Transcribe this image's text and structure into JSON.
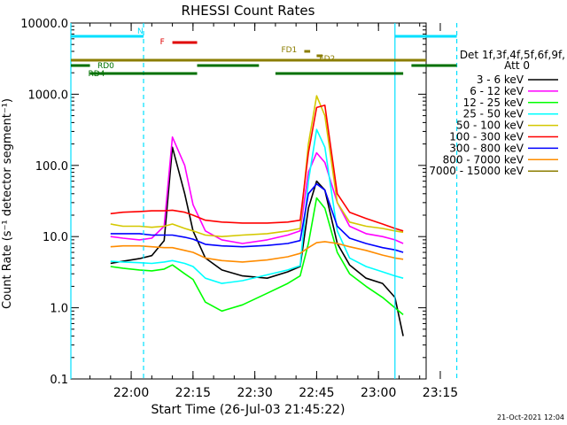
{
  "chart_data": {
    "type": "line",
    "title": "RHESSI Count Rates",
    "xlabel": "Start Time (26-Jul-03 21:45:22)",
    "ylabel": "Count Rate (s⁻¹ detector segment⁻¹)",
    "y_scale": "log",
    "ylim": [
      0.1,
      10000
    ],
    "y_ticks": [
      "0.1",
      "1.0",
      "10.0",
      "100.0",
      "1000.0",
      "10000.0"
    ],
    "xlim_minutes_after_start": [
      0,
      86.2
    ],
    "x_ticks": [
      "22:00",
      "22:15",
      "22:30",
      "22:45",
      "23:00",
      "23:15"
    ],
    "grid": false,
    "legend_position": "right",
    "legend_header": [
      "Det 1f,3f,4f,5f,6f,9f,",
      "Att 0"
    ],
    "series": [
      {
        "name": "3 - 6 keV",
        "color": "#000000",
        "times": [
          "21:55",
          "21:58",
          "22:02",
          "22:05",
          "22:08",
          "22:10",
          "22:13",
          "22:15",
          "22:18",
          "22:22",
          "22:27",
          "22:33",
          "22:38",
          "22:41",
          "22:43",
          "22:45",
          "22:47",
          "22:50",
          "22:53",
          "22:57",
          "23:01",
          "23:04",
          "23:06"
        ],
        "values": [
          4.2,
          4.5,
          4.9,
          5.4,
          8.8,
          180,
          40,
          12,
          5,
          3.4,
          2.8,
          2.6,
          3.2,
          3.8,
          25,
          60,
          45,
          8,
          4,
          2.6,
          2.2,
          1.4,
          0.4
        ]
      },
      {
        "name": "6 - 12 keV",
        "color": "#ff00ff",
        "times": [
          "21:55",
          "21:58",
          "22:02",
          "22:05",
          "22:08",
          "22:10",
          "22:13",
          "22:15",
          "22:18",
          "22:22",
          "22:27",
          "22:33",
          "22:38",
          "22:41",
          "22:43",
          "22:45",
          "22:47",
          "22:50",
          "22:53",
          "22:57",
          "23:01",
          "23:04",
          "23:06"
        ],
        "values": [
          10,
          9.5,
          9,
          9.5,
          14,
          250,
          100,
          28,
          12,
          9,
          8,
          9,
          10.5,
          12,
          80,
          150,
          110,
          30,
          14,
          11,
          10,
          9,
          8
        ]
      },
      {
        "name": "12 - 25 keV",
        "color": "#00ff00",
        "times": [
          "21:55",
          "21:58",
          "22:02",
          "22:05",
          "22:08",
          "22:10",
          "22:13",
          "22:15",
          "22:18",
          "22:22",
          "22:27",
          "22:33",
          "22:38",
          "22:41",
          "22:43",
          "22:45",
          "22:47",
          "22:50",
          "22:53",
          "22:57",
          "23:01",
          "23:04",
          "23:06"
        ],
        "values": [
          3.8,
          3.6,
          3.4,
          3.3,
          3.5,
          4,
          3,
          2.5,
          1.2,
          0.9,
          1.1,
          1.6,
          2.2,
          2.8,
          8,
          35,
          25,
          6,
          3,
          2,
          1.4,
          1,
          0.8
        ]
      },
      {
        "name": "25 - 50 keV",
        "color": "#00ffff",
        "times": [
          "21:55",
          "21:58",
          "22:02",
          "22:05",
          "22:08",
          "22:10",
          "22:13",
          "22:15",
          "22:18",
          "22:22",
          "22:27",
          "22:33",
          "22:38",
          "22:41",
          "22:43",
          "22:45",
          "22:47",
          "22:50",
          "22:53",
          "22:57",
          "23:01",
          "23:04",
          "23:06"
        ],
        "values": [
          4.5,
          4.4,
          4.3,
          4.2,
          4.4,
          4.6,
          4.2,
          3.8,
          2.6,
          2.2,
          2.4,
          2.9,
          3.4,
          3.9,
          60,
          320,
          180,
          12,
          5,
          3.8,
          3.2,
          2.8,
          2.6
        ]
      },
      {
        "name": "50 - 100 keV",
        "color": "#d4c800",
        "times": [
          "21:55",
          "21:58",
          "22:02",
          "22:05",
          "22:08",
          "22:10",
          "22:13",
          "22:15",
          "22:18",
          "22:22",
          "22:27",
          "22:33",
          "22:38",
          "22:41",
          "22:43",
          "22:45",
          "22:47",
          "22:50",
          "22:53",
          "22:57",
          "23:01",
          "23:04",
          "23:06"
        ],
        "values": [
          15,
          14,
          14,
          13.5,
          14,
          15,
          13,
          12,
          10.5,
          10,
          10.5,
          11,
          12,
          13,
          200,
          950,
          500,
          30,
          16,
          14,
          13,
          12,
          11.5
        ]
      },
      {
        "name": "100 - 300 keV",
        "color": "#ff0000",
        "times": [
          "21:55",
          "21:58",
          "22:02",
          "22:05",
          "22:08",
          "22:10",
          "22:13",
          "22:15",
          "22:18",
          "22:22",
          "22:27",
          "22:33",
          "22:38",
          "22:41",
          "22:43",
          "22:45",
          "22:47",
          "22:50",
          "22:53",
          "22:57",
          "23:01",
          "23:04",
          "23:06"
        ],
        "values": [
          21,
          22,
          22.5,
          23,
          23,
          23.5,
          22,
          20,
          17,
          16,
          15.5,
          15.5,
          16,
          17,
          150,
          650,
          700,
          40,
          22,
          18,
          15,
          13,
          12
        ]
      },
      {
        "name": "300 - 800 keV",
        "color": "#0000ff",
        "times": [
          "21:55",
          "21:58",
          "22:02",
          "22:05",
          "22:08",
          "22:10",
          "22:13",
          "22:15",
          "22:18",
          "22:22",
          "22:27",
          "22:33",
          "22:38",
          "22:41",
          "22:43",
          "22:45",
          "22:47",
          "22:50",
          "22:53",
          "22:57",
          "23:01",
          "23:04",
          "23:06"
        ],
        "values": [
          11,
          11,
          11,
          10.5,
          10.5,
          10.5,
          9.8,
          9.2,
          7.8,
          7.4,
          7.2,
          7.5,
          8,
          8.8,
          40,
          55,
          45,
          14,
          9.5,
          8,
          7,
          6.5,
          6
        ]
      },
      {
        "name": "800 - 7000 keV",
        "color": "#ff8c00",
        "times": [
          "21:55",
          "21:58",
          "22:02",
          "22:05",
          "22:08",
          "22:10",
          "22:13",
          "22:15",
          "22:18",
          "22:22",
          "22:27",
          "22:33",
          "22:38",
          "22:41",
          "22:43",
          "22:45",
          "22:47",
          "22:50",
          "22:53",
          "22:57",
          "23:01",
          "23:04",
          "23:06"
        ],
        "values": [
          7.2,
          7.4,
          7.4,
          7.2,
          7,
          7,
          6.4,
          6,
          5,
          4.6,
          4.4,
          4.7,
          5.2,
          5.8,
          7,
          8.2,
          8.5,
          8,
          7.2,
          6.4,
          5.5,
          5,
          4.8
        ]
      },
      {
        "name": "7000 - 15000 keV",
        "color": "#8b7d00",
        "times": [
          "21:55",
          "21:58",
          "22:02",
          "22:05",
          "22:08",
          "22:10",
          "22:13",
          "22:15",
          "22:18",
          "22:22",
          "22:27",
          "22:33",
          "22:38",
          "22:41",
          "22:43",
          "22:45",
          "22:47",
          "22:50",
          "22:53",
          "22:57",
          "23:01",
          "23:04",
          "23:06"
        ],
        "values": [
          3000,
          3000,
          3000,
          3000,
          3000,
          3000,
          3000,
          3000,
          3000,
          3000,
          3000,
          3000,
          3000,
          3000,
          3000,
          3000,
          3000,
          3000,
          3000,
          3000,
          3000,
          3000,
          3000
        ]
      }
    ],
    "annotations": {
      "night_bars": [
        {
          "label": "N",
          "color": "#00e0ff",
          "segments": [
            [
              "21:45:22",
              "22:03"
            ],
            [
              "23:04",
              "23:19"
            ]
          ]
        }
      ],
      "flare_bars": [
        {
          "label": "F",
          "color": "#e00000",
          "segments": [
            [
              "22:10",
              "22:16"
            ]
          ]
        }
      ],
      "fd_bars": [
        {
          "label": "FD1",
          "color": "#8b7d00",
          "segments": [
            [
              "22:42",
              "22:43"
            ]
          ]
        },
        {
          "label": "FD2",
          "color": "#8b7d00",
          "segments": [
            [
              "22:45",
              "22:46"
            ]
          ]
        }
      ],
      "atten_line": {
        "color": "#8b7d00"
      },
      "rd_bars": [
        {
          "label": "RD0",
          "color": "#007000",
          "segments": [
            [
              "21:45:22",
              "21:50"
            ],
            [
              "22:16",
              "22:31"
            ],
            [
              "23:08",
              "23:19"
            ]
          ]
        },
        {
          "label": "RD4",
          "color": "#007000",
          "segments": [
            [
              "21:50",
              "22:16"
            ],
            [
              "22:35",
              "23:06"
            ]
          ]
        }
      ],
      "vertical_lines_cyan": [
        "21:45:22",
        "22:03",
        "23:04",
        "23:19"
      ]
    },
    "footer_date": "21-Oct-2021 12:04"
  }
}
